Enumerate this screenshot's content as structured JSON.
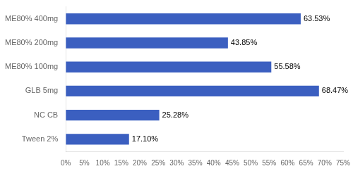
{
  "chart_data": {
    "type": "bar",
    "orientation": "horizontal",
    "categories": [
      "ME80% 400mg",
      "ME80% 200mg",
      "ME80% 100mg",
      "GLB 5mg",
      "NC CB",
      "Tween 2%"
    ],
    "values": [
      63.53,
      43.85,
      55.58,
      68.47,
      25.28,
      17.1
    ],
    "value_labels": [
      "63.53%",
      "43.85%",
      "55.58%",
      "68.47%",
      "25.28%",
      "17.10%"
    ],
    "data_labels": true,
    "color": "#3B5FC0",
    "xlim": [
      0,
      75
    ],
    "xticks": [
      {
        "value": 0,
        "label": "0%"
      },
      {
        "value": 5,
        "label": "5%"
      },
      {
        "value": 10,
        "label": "10%"
      },
      {
        "value": 15,
        "label": "15%"
      },
      {
        "value": 20,
        "label": "20%"
      },
      {
        "value": 25,
        "label": "25%"
      },
      {
        "value": 30,
        "label": "30%"
      },
      {
        "value": 35,
        "label": "35%"
      },
      {
        "value": 40,
        "label": "40%"
      },
      {
        "value": 45,
        "label": "45%"
      },
      {
        "value": 50,
        "label": "50%"
      },
      {
        "value": 55,
        "label": "55%"
      },
      {
        "value": 60,
        "label": "60%"
      },
      {
        "value": 65,
        "label": "65%"
      },
      {
        "value": 70,
        "label": "70%"
      },
      {
        "value": 75,
        "label": "75%"
      }
    ],
    "grid": false
  }
}
